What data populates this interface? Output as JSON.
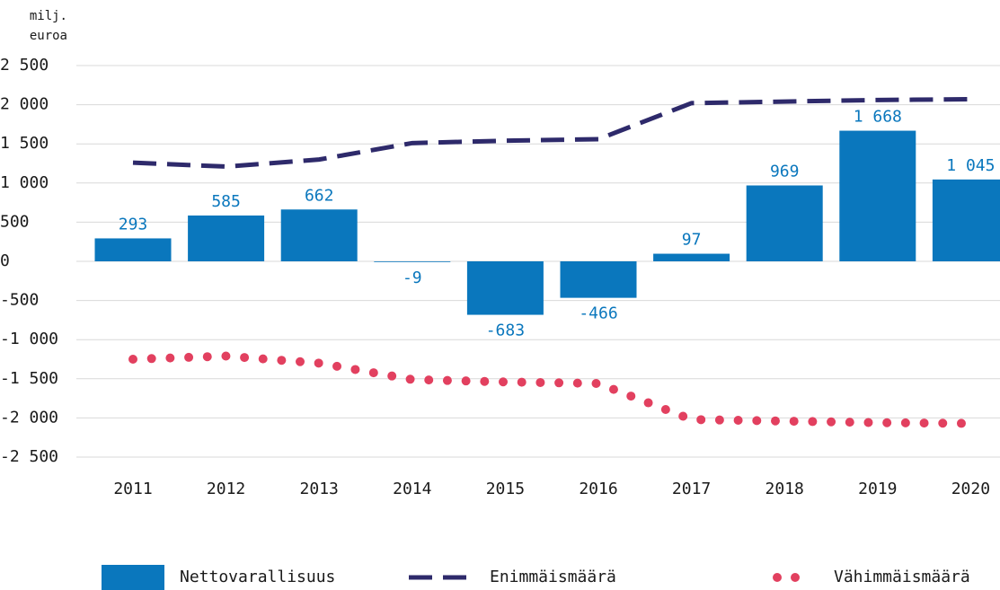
{
  "chart_data": {
    "type": "bar",
    "ylabel_lines": [
      "milj.",
      "euroa"
    ],
    "categories": [
      "2011",
      "2012",
      "2013",
      "2014",
      "2015",
      "2016",
      "2017",
      "2018",
      "2019",
      "2020"
    ],
    "ylim": [
      -2500,
      2500
    ],
    "yticks": [
      {
        "value": 2500,
        "label": "2 500"
      },
      {
        "value": 2000,
        "label": "2 000"
      },
      {
        "value": 1500,
        "label": "1 500"
      },
      {
        "value": 1000,
        "label": "1 000"
      },
      500,
      0,
      -500,
      {
        "value": -1000,
        "label": "-1 000"
      },
      {
        "value": -1500,
        "label": "-1 500"
      },
      {
        "value": -2000,
        "label": "-2 000"
      },
      {
        "value": -2500,
        "label": "-2 500"
      }
    ],
    "grid": true,
    "legend": "bottom",
    "series": [
      {
        "name": "Nettovarallisuus",
        "type": "bar",
        "color": "#0a77bd",
        "values": [
          293,
          585,
          662,
          -9,
          -683,
          -466,
          97,
          969,
          1668,
          1045
        ],
        "value_labels": [
          "293",
          "585",
          "662",
          "-9",
          "-683",
          "-466",
          "97",
          "969",
          "1 668",
          "1 045"
        ]
      },
      {
        "name": "Enimmäismäärä",
        "type": "line",
        "style": "dashed",
        "color": "#2e2a6b",
        "values": [
          1260,
          1210,
          1300,
          1510,
          1540,
          1560,
          2020,
          2040,
          2060,
          2070
        ]
      },
      {
        "name": "Vähimmäismäärä",
        "type": "line",
        "style": "dotted",
        "color": "#e2405f",
        "values": [
          -1250,
          -1210,
          -1300,
          -1510,
          -1540,
          -1560,
          -2020,
          -2040,
          -2060,
          -2070
        ]
      }
    ]
  }
}
